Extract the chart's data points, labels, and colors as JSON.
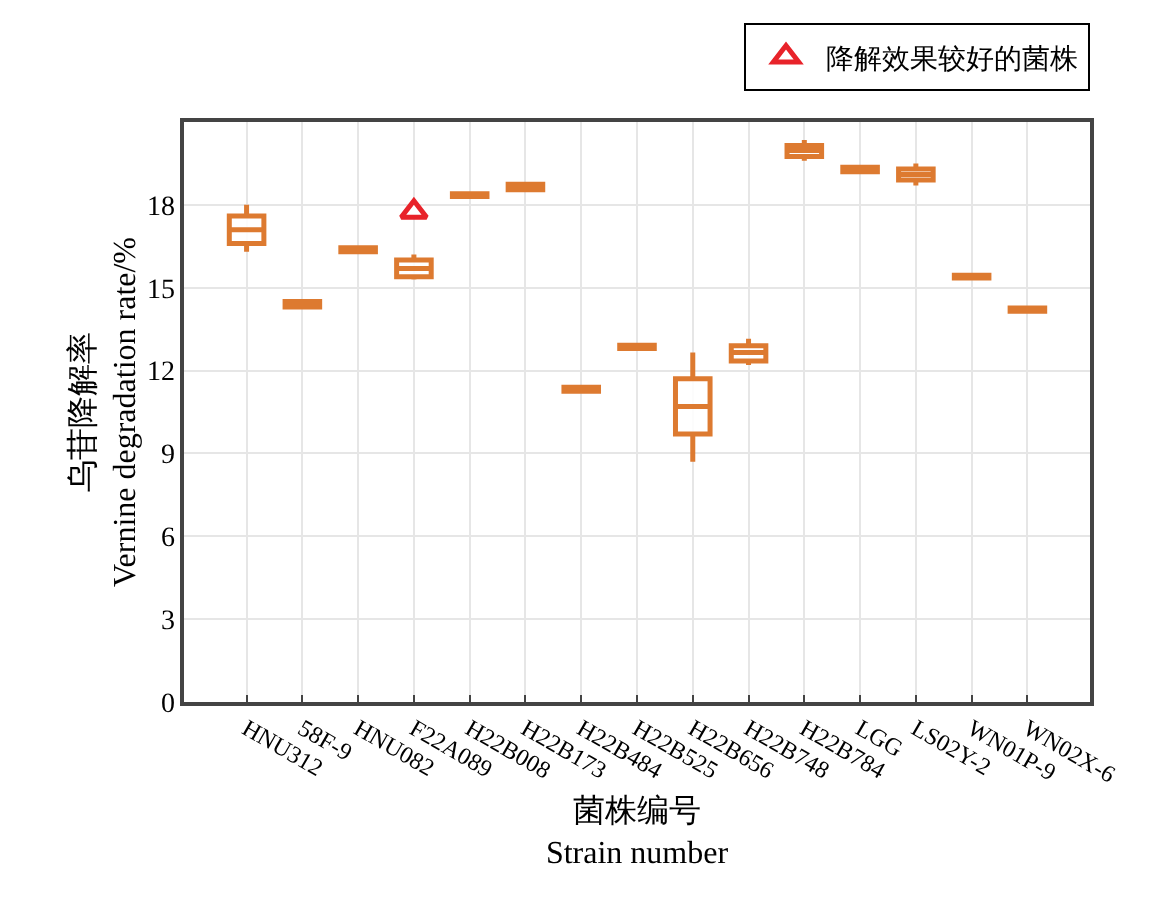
{
  "chart_data": {
    "type": "box",
    "xlabel": "菌株编号\nStrain number",
    "ylabel": "乌苷降解率\nVernine degradation rate/%",
    "categories": [
      "HNU312",
      "58F-9",
      "HNU082",
      "F22A089",
      "H22B008",
      "H22B173",
      "H22B484",
      "H22B525",
      "H22B656",
      "H22B748",
      "H22B784",
      "LGG",
      "LS02Y-2",
      "WN01P-9",
      "WN02X-6"
    ],
    "series": [
      {
        "type": "box",
        "color": "#dd7a30",
        "boxes": [
          {
            "low": 16.3,
            "q1": 16.6,
            "median": 17.1,
            "q3": 17.6,
            "high": 18.0
          },
          {
            "low": 14.3,
            "q1": 14.3,
            "median": 14.4,
            "q3": 14.5,
            "high": 14.5
          },
          {
            "low": 16.3,
            "q1": 16.3,
            "median": 16.38,
            "q3": 16.45,
            "high": 16.45
          },
          {
            "low": 15.3,
            "q1": 15.4,
            "median": 15.7,
            "q3": 16.0,
            "high": 16.2
          },
          {
            "low": 18.3,
            "q1": 18.3,
            "median": 18.35,
            "q3": 18.4,
            "high": 18.4
          },
          {
            "low": 18.55,
            "q1": 18.55,
            "median": 18.65,
            "q3": 18.75,
            "high": 18.75
          },
          {
            "low": 11.25,
            "q1": 11.25,
            "median": 11.33,
            "q3": 11.4,
            "high": 11.4
          },
          {
            "low": 12.8,
            "q1": 12.8,
            "median": 12.86,
            "q3": 12.92,
            "high": 12.92
          },
          {
            "low": 8.7,
            "q1": 9.7,
            "median": 10.7,
            "q3": 11.7,
            "high": 12.65
          },
          {
            "low": 12.2,
            "q1": 12.35,
            "median": 12.65,
            "q3": 12.9,
            "high": 13.15
          },
          {
            "low": 19.6,
            "q1": 19.75,
            "median": 19.97,
            "q3": 20.15,
            "high": 20.35
          },
          {
            "low": 19.2,
            "q1": 19.2,
            "median": 19.28,
            "q3": 19.36,
            "high": 19.36
          },
          {
            "low": 18.7,
            "q1": 18.9,
            "median": 19.1,
            "q3": 19.3,
            "high": 19.5
          },
          {
            "low": 15.35,
            "q1": 15.35,
            "median": 15.4,
            "q3": 15.45,
            "high": 15.45
          },
          {
            "low": 14.15,
            "q1": 14.15,
            "median": 14.21,
            "q3": 14.27,
            "high": 14.27
          }
        ]
      },
      {
        "type": "scatter",
        "name": "降解效果较好的菌株",
        "color": "#e8232a",
        "x": [
          "F22A089"
        ],
        "values": [
          17.75
        ]
      }
    ],
    "marker": "triangle",
    "ylim": [
      0,
      21
    ],
    "yticks": [
      0,
      3,
      6,
      9,
      12,
      15,
      18
    ],
    "grid": true,
    "legend": "top right"
  }
}
